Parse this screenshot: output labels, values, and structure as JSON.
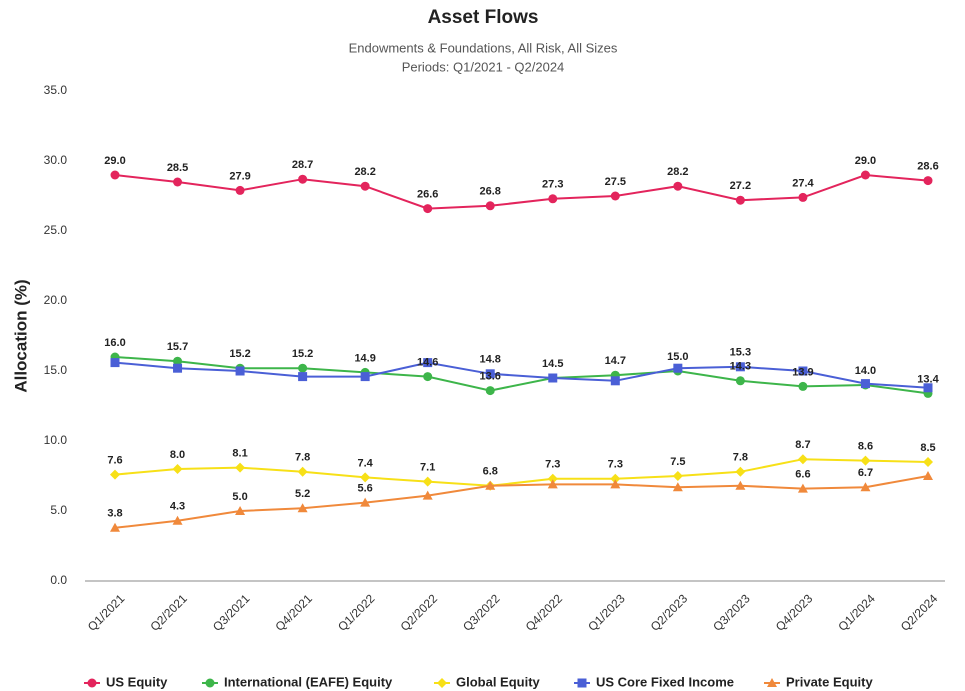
{
  "chart_data": {
    "type": "line",
    "title": "Asset Flows",
    "subtitle": [
      "Endowments & Foundations, All Risk, All Sizes",
      "Periods: Q1/2021 - Q2/2024"
    ],
    "ylabel": "Allocation (%)",
    "categories": [
      "Q1/2021",
      "Q2/2021",
      "Q3/2021",
      "Q4/2021",
      "Q1/2022",
      "Q2/2022",
      "Q3/2022",
      "Q4/2022",
      "Q1/2023",
      "Q2/2023",
      "Q3/2023",
      "Q4/2023",
      "Q1/2024",
      "Q2/2024"
    ],
    "ylim": [
      0,
      35
    ],
    "yticks": [
      {
        "value": 0,
        "label": "0.0"
      },
      {
        "value": 5,
        "label": "5.0"
      },
      {
        "value": 10,
        "label": "10.0"
      },
      {
        "value": 15,
        "label": "15.0"
      },
      {
        "value": 20,
        "label": "20.0"
      },
      {
        "value": 25,
        "label": "25.0"
      },
      {
        "value": 30,
        "label": "30.0"
      },
      {
        "value": 35,
        "label": "35.0"
      }
    ],
    "grid": false,
    "legend": "bottom",
    "series": [
      {
        "name": "US Equity",
        "color": "#e3245c",
        "marker": "circle",
        "values": [
          29.0,
          28.5,
          27.9,
          28.7,
          28.2,
          26.6,
          26.8,
          27.3,
          27.5,
          28.2,
          27.2,
          27.4,
          29.0,
          28.6
        ],
        "value_labels": [
          "29.0",
          "28.5",
          "27.9",
          "28.7",
          "28.2",
          "26.6",
          "26.8",
          "27.3",
          "27.5",
          "28.2",
          "27.2",
          "27.4",
          "29.0",
          "28.6"
        ]
      },
      {
        "name": "International (EAFE) Equity",
        "color": "#3db54a",
        "marker": "circle",
        "values": [
          16.0,
          15.7,
          15.2,
          15.2,
          14.9,
          14.6,
          13.6,
          14.5,
          14.7,
          15.0,
          14.3,
          13.9,
          14.0,
          13.4
        ],
        "value_labels": [
          "16.0",
          "15.7",
          "15.2",
          "15.2",
          "14.9",
          "14.6",
          "13.6",
          "14.5",
          "14.7",
          "15.0",
          "14.3",
          "13.9",
          "14.0",
          "13.4"
        ]
      },
      {
        "name": "Global Equity",
        "color": "#f7e017",
        "marker": "diamond",
        "values": [
          7.6,
          8.0,
          8.1,
          7.8,
          7.4,
          7.1,
          6.8,
          7.3,
          7.3,
          7.5,
          7.8,
          8.7,
          8.6,
          8.5
        ],
        "value_labels": [
          "7.6",
          "8.0",
          "8.1",
          "7.8",
          "7.4",
          "7.1",
          "6.8",
          "7.3",
          "7.3",
          "7.5",
          "7.8",
          "8.7",
          "8.6",
          "8.5"
        ]
      },
      {
        "name": "US Core Fixed Income",
        "color": "#4a5fd6",
        "marker": "square",
        "values": [
          15.6,
          15.2,
          15.0,
          14.6,
          14.6,
          15.6,
          14.8,
          14.5,
          14.3,
          15.2,
          15.3,
          15.0,
          14.1,
          13.8
        ],
        "value_labels": [
          null,
          null,
          null,
          null,
          null,
          null,
          "14.8",
          null,
          null,
          null,
          "15.3",
          null,
          null,
          null
        ]
      },
      {
        "name": "Private Equity",
        "color": "#f0893b",
        "marker": "triangle",
        "values": [
          3.8,
          4.3,
          5.0,
          5.2,
          5.6,
          6.1,
          6.8,
          6.9,
          6.9,
          6.7,
          6.8,
          6.6,
          6.7,
          7.5
        ],
        "value_labels": [
          "3.8",
          "4.3",
          "5.0",
          "5.2",
          "5.6",
          null,
          null,
          null,
          null,
          null,
          null,
          "6.6",
          "6.7",
          null
        ]
      }
    ]
  }
}
